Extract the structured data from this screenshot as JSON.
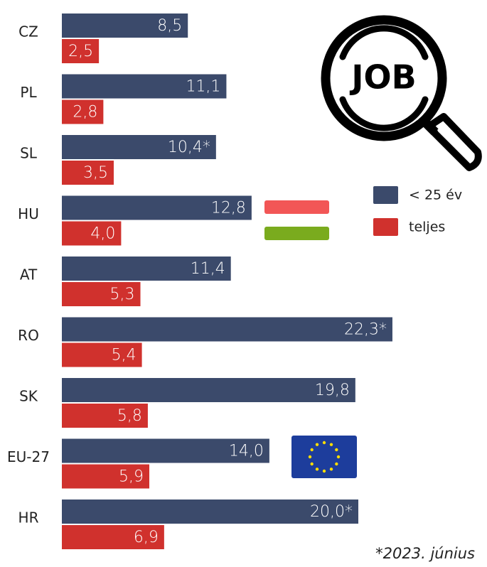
{
  "chart_data": {
    "type": "bar",
    "categories": [
      "CZ",
      "PL",
      "SL",
      "HU",
      "AT",
      "RO",
      "SK",
      "EU-27",
      "HR"
    ],
    "series": [
      {
        "name": "< 25 év",
        "color": "#3b4a6b",
        "values": [
          8.5,
          11.1,
          10.4,
          12.8,
          11.4,
          22.3,
          19.8,
          14.0,
          20.0
        ],
        "value_labels": [
          "8,5",
          "11,1",
          "10,4*",
          "12,8",
          "11,4",
          "22,3*",
          "19,8",
          "14,0",
          "20,0*"
        ]
      },
      {
        "name": "teljes",
        "color": "#d0312d",
        "values": [
          2.5,
          2.8,
          3.5,
          4.0,
          5.3,
          5.4,
          5.8,
          5.9,
          6.9
        ],
        "value_labels": [
          "2,5",
          "2,8",
          "3,5",
          "4,0",
          "5,3",
          "5,4",
          "5,8",
          "5,9",
          "6,9"
        ]
      }
    ],
    "footnote": "*2023.  június",
    "icon_label": "JOB"
  }
}
